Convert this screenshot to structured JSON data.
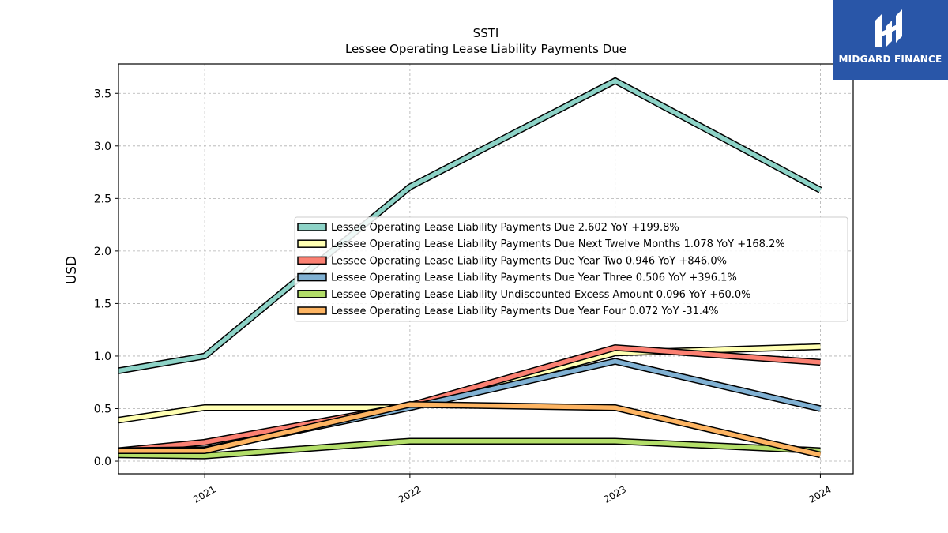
{
  "logo": {
    "text": "MIDGARD FINANCE"
  },
  "chart_data": {
    "type": "line",
    "title": "SSTI",
    "subtitle": "Lessee Operating Lease Liability Payments Due",
    "xlabel": "",
    "ylabel": "USD",
    "categories": [
      "2021",
      "2022",
      "2023",
      "2024"
    ],
    "x": [
      2020.58,
      2021,
      2022,
      2023,
      2024
    ],
    "xlim": [
      2020.58,
      2024.16
    ],
    "ylim": [
      -0.12,
      3.78
    ],
    "yticks": [
      "0.0",
      "0.5",
      "1.0",
      "1.5",
      "2.0",
      "2.5",
      "3.0",
      "3.5"
    ],
    "grid": true,
    "legend_position": "center-right",
    "series": [
      {
        "name": "Lessee Operating Lease Liability Payments Due",
        "legend": "Lessee Operating Lease Liability Payments Due  2.602 YoY +199.8%",
        "color": "#8dd3c7",
        "values": [
          0.86,
          1.0,
          2.61,
          3.62,
          2.58
        ]
      },
      {
        "name": "Lessee Operating Lease Liability Payments Due Next Twelve Months",
        "legend": "Lessee Operating Lease Liability Payments Due Next Twelve Months  1.078 YoY +168.2%",
        "color": "#ffffb3",
        "values": [
          0.39,
          0.51,
          0.51,
          1.03,
          1.09
        ]
      },
      {
        "name": "Lessee Operating Lease Liability Payments Due Year Two",
        "legend": "Lessee Operating Lease Liability Payments Due Year Two  0.946 YoY +846.0%",
        "color": "#fb8072",
        "values": [
          0.1,
          0.18,
          0.53,
          1.08,
          0.94
        ]
      },
      {
        "name": "Lessee Operating Lease Liability Payments Due Year Three",
        "legend": "Lessee Operating Lease Liability Payments Due Year Three  0.506 YoY +396.1%",
        "color": "#80b1d3",
        "values": [
          0.1,
          0.11,
          0.51,
          0.95,
          0.5
        ]
      },
      {
        "name": "Lessee Operating Lease Liability Undiscounted Excess Amount",
        "legend": "Lessee Operating Lease Liability Undiscounted Excess Amount  0.096 YoY +60.0%",
        "color": "#b3de69",
        "values": [
          0.06,
          0.05,
          0.19,
          0.19,
          0.1
        ]
      },
      {
        "name": "Lessee Operating Lease Liability Payments Due Year Four",
        "legend": "Lessee Operating Lease Liability Payments Due Year Four  0.072 YoY -31.4%",
        "color": "#fdb462",
        "values": [
          0.1,
          0.1,
          0.54,
          0.51,
          0.06
        ]
      }
    ]
  }
}
